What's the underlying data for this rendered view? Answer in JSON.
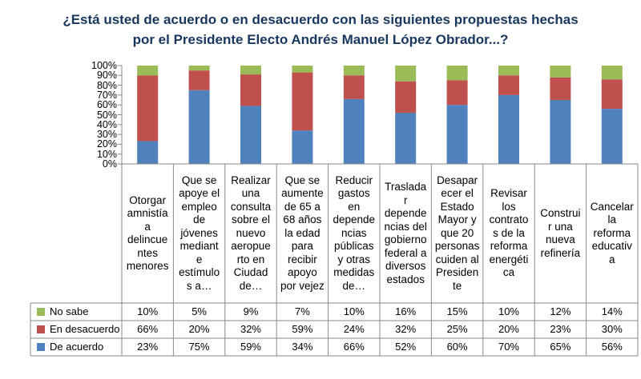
{
  "title": {
    "line1": "¿Está usted de acuerdo o en desacuerdo con las siguientes propuestas hechas",
    "line2": "por el Presidente Electo Andrés Manuel López Obrador...?"
  },
  "chart_data": {
    "type": "bar",
    "stacked": "percent",
    "categories": [
      "Otorgar amnistía a delincuentes menores",
      "Que se apoye el empleo de jóvenes mediante estímulos a…",
      "Realizar una consulta sobre el nuevo aeropuerto en Ciudad de…",
      "Que se aumente de 65 a 68 años la edad para recibir apoyo por vejez",
      "Reducir gastos en dependencias públicas y otras medidas de…",
      "Trasladar dependencias del gobierno federal a diversos estados",
      "Desaparecer el Estado Mayor y que 20 personas cuiden al Presidente",
      "Revisar los contratos de la reforma energética",
      "Construir una nueva refinería",
      "Cancelar la reforma educativa"
    ],
    "category_lines": [
      [
        "Otorgar",
        "amnistía",
        "a",
        "delincue",
        "ntes",
        "menores"
      ],
      [
        "Que se",
        "apoye el",
        "empleo",
        "de",
        "jóvenes",
        "mediant",
        "e",
        "estímulo",
        "s a…"
      ],
      [
        "Realizar",
        "una",
        "consulta",
        "sobre el",
        "nuevo",
        "aeropue",
        "rto en",
        "Ciudad",
        "de…"
      ],
      [
        "Que se",
        "aumente",
        "de 65 a",
        "68 años",
        "la edad",
        "para",
        "recibir",
        "apoyo",
        "por vejez"
      ],
      [
        "Reducir",
        "gastos",
        "en",
        "depende",
        "ncias",
        "públicas",
        "y otras",
        "medidas",
        "de…"
      ],
      [
        "Traslada",
        "r",
        "depende",
        "ncias del",
        "gobierno",
        "federal a",
        "diversos",
        "estados"
      ],
      [
        "Desapar",
        "ecer el",
        "Estado",
        "Mayor y",
        "que 20",
        "personas",
        "cuiden al",
        "Presiden",
        "te"
      ],
      [
        "Revisar",
        "los",
        "contrato",
        "s de la",
        "reforma",
        "energéti",
        "ca"
      ],
      [
        "Construi",
        "r una",
        "nueva",
        "refinería"
      ],
      [
        "Cancelar",
        "la",
        "reforma",
        "educativ",
        "a"
      ]
    ],
    "series": [
      {
        "name": "De acuerdo",
        "color": "#4f81bd",
        "values": [
          23,
          75,
          59,
          34,
          66,
          52,
          60,
          70,
          65,
          56
        ],
        "labels": [
          "23%",
          "75%",
          "59%",
          "34%",
          "66%",
          "52%",
          "60%",
          "70%",
          "65%",
          "56%"
        ]
      },
      {
        "name": "En desacuerdo",
        "color": "#c0504d",
        "values": [
          66,
          20,
          32,
          59,
          24,
          32,
          25,
          20,
          23,
          30
        ],
        "labels": [
          "66%",
          "20%",
          "32%",
          "59%",
          "24%",
          "32%",
          "25%",
          "20%",
          "23%",
          "30%"
        ]
      },
      {
        "name": "No sabe",
        "color": "#9bbb59",
        "values": [
          10,
          5,
          9,
          7,
          10,
          16,
          15,
          10,
          12,
          14
        ],
        "labels": [
          "10%",
          "5%",
          "9%",
          "7%",
          "10%",
          "16%",
          "15%",
          "10%",
          "12%",
          "14%"
        ]
      }
    ],
    "table_row_order": [
      "No sabe",
      "En desacuerdo",
      "De acuerdo"
    ],
    "ylim": [
      0,
      100
    ],
    "yticks": [
      0,
      10,
      20,
      30,
      40,
      50,
      60,
      70,
      80,
      90,
      100
    ],
    "ytick_labels": [
      "0%",
      "10%",
      "20%",
      "30%",
      "40%",
      "50%",
      "60%",
      "70%",
      "80%",
      "90%",
      "100%"
    ],
    "grid": false,
    "legend": "data-table"
  }
}
